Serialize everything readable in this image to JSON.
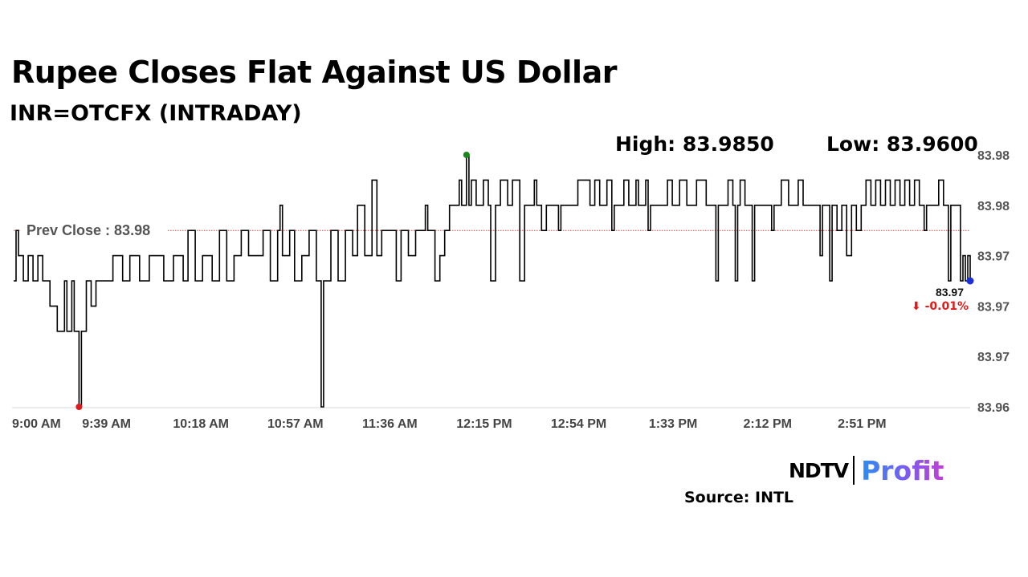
{
  "header": {
    "title": "Rupee Closes Flat Against US Dollar",
    "subtitle": "INR=OTCFX (INTRADAY)"
  },
  "stats": {
    "high": "High: 83.9850",
    "low": "Low: 83.9600"
  },
  "footer": {
    "logo_left": "NDTV",
    "logo_right": "Profit",
    "source": "Source: INTL"
  },
  "colors": {
    "line": "#000000",
    "prev_close": "#d94040",
    "high_marker": "#188a1a",
    "low_marker": "#e01a1a",
    "last_marker": "#1a2fd6",
    "change": "#e01a1a"
  },
  "chart_data": {
    "type": "line",
    "title": "Rupee Closes Flat Against US Dollar",
    "subtitle": "INR=OTCFX (INTRADAY)",
    "x_range_minutes_since_9am": [
      0,
      395
    ],
    "ylim": [
      83.96,
      83.985
    ],
    "y_ticks": [
      83.96,
      83.965,
      83.97,
      83.975,
      83.98,
      83.985
    ],
    "y_tick_labels": [
      "83.96",
      "83.97",
      "83.97",
      "83.97",
      "83.98",
      "83.98"
    ],
    "x_ticks": [
      0,
      39,
      78,
      117,
      156,
      195,
      234,
      273,
      312,
      351
    ],
    "x_tick_labels": [
      "9:00 AM",
      "9:39 AM",
      "10:18 AM",
      "10:57 AM",
      "11:36 AM",
      "12:15 PM",
      "12:54 PM",
      "1:33 PM",
      "2:12 PM",
      "2:51 PM"
    ],
    "prev_close": {
      "value": 83.9775,
      "label": "Prev Close : 83.98"
    },
    "high": {
      "t": 187,
      "value": 83.985
    },
    "low": {
      "t": 27,
      "value": 83.96
    },
    "last": {
      "t": 395,
      "value": 83.9725,
      "label": "83.97",
      "change": "⬇ -0.01%"
    },
    "series": [
      {
        "name": "INR=OTCFX",
        "points": [
          [
            0,
            83.9725
          ],
          [
            1,
            83.9775
          ],
          [
            2,
            83.975
          ],
          [
            4,
            83.9725
          ],
          [
            6,
            83.975
          ],
          [
            8,
            83.9725
          ],
          [
            10,
            83.975
          ],
          [
            12,
            83.9725
          ],
          [
            14,
            83.9725
          ],
          [
            15,
            83.97
          ],
          [
            17,
            83.97
          ],
          [
            18,
            83.9675
          ],
          [
            20,
            83.9675
          ],
          [
            21,
            83.9725
          ],
          [
            22,
            83.9675
          ],
          [
            24,
            83.9725
          ],
          [
            25,
            83.9675
          ],
          [
            26,
            83.9675
          ],
          [
            27,
            83.96
          ],
          [
            28,
            83.9675
          ],
          [
            30,
            83.9725
          ],
          [
            32,
            83.97
          ],
          [
            34,
            83.9725
          ],
          [
            36,
            83.9725
          ],
          [
            38,
            83.9725
          ],
          [
            40,
            83.9725
          ],
          [
            41,
            83.975
          ],
          [
            45,
            83.9725
          ],
          [
            48,
            83.975
          ],
          [
            52,
            83.9725
          ],
          [
            56,
            83.975
          ],
          [
            60,
            83.975
          ],
          [
            62,
            83.9725
          ],
          [
            66,
            83.975
          ],
          [
            70,
            83.9725
          ],
          [
            72,
            83.9775
          ],
          [
            75,
            83.9725
          ],
          [
            78,
            83.975
          ],
          [
            82,
            83.9725
          ],
          [
            85,
            83.9775
          ],
          [
            88,
            83.9725
          ],
          [
            91,
            83.975
          ],
          [
            94,
            83.9775
          ],
          [
            97,
            83.975
          ],
          [
            100,
            83.975
          ],
          [
            103,
            83.9775
          ],
          [
            106,
            83.9725
          ],
          [
            109,
            83.9775
          ],
          [
            110,
            83.98
          ],
          [
            111,
            83.975
          ],
          [
            114,
            83.9775
          ],
          [
            116,
            83.9725
          ],
          [
            119,
            83.975
          ],
          [
            122,
            83.9775
          ],
          [
            125,
            83.9725
          ],
          [
            127,
            83.96
          ],
          [
            128,
            83.9725
          ],
          [
            131,
            83.9775
          ],
          [
            134,
            83.9725
          ],
          [
            137,
            83.9775
          ],
          [
            140,
            83.975
          ],
          [
            142,
            83.98
          ],
          [
            145,
            83.975
          ],
          [
            148,
            83.9825
          ],
          [
            150,
            83.975
          ],
          [
            152,
            83.9775
          ],
          [
            154,
            83.9775
          ],
          [
            156,
            83.9775
          ],
          [
            158,
            83.9725
          ],
          [
            160,
            83.9775
          ],
          [
            163,
            83.975
          ],
          [
            166,
            83.9775
          ],
          [
            170,
            83.98
          ],
          [
            171,
            83.9775
          ],
          [
            174,
            83.9725
          ],
          [
            176,
            83.975
          ],
          [
            178,
            83.9775
          ],
          [
            180,
            83.98
          ],
          [
            182,
            83.98
          ],
          [
            184,
            83.9825
          ],
          [
            185,
            83.98
          ],
          [
            187,
            83.985
          ],
          [
            188,
            83.98
          ],
          [
            189,
            83.9825
          ],
          [
            191,
            83.98
          ],
          [
            194,
            83.9825
          ],
          [
            196,
            83.98
          ],
          [
            197,
            83.9725
          ],
          [
            199,
            83.98
          ],
          [
            201,
            83.9825
          ],
          [
            204,
            83.98
          ],
          [
            206,
            83.9825
          ],
          [
            209,
            83.9725
          ],
          [
            211,
            83.98
          ],
          [
            213,
            83.98
          ],
          [
            215,
            83.9825
          ],
          [
            216,
            83.98
          ],
          [
            218,
            83.9775
          ],
          [
            220,
            83.98
          ],
          [
            224,
            83.98
          ],
          [
            225,
            83.9775
          ],
          [
            226,
            83.98
          ],
          [
            230,
            83.98
          ],
          [
            233,
            83.9825
          ],
          [
            236,
            83.9825
          ],
          [
            238,
            83.98
          ],
          [
            240,
            83.9825
          ],
          [
            242,
            83.98
          ],
          [
            245,
            83.9825
          ],
          [
            247,
            83.9775
          ],
          [
            248,
            83.98
          ],
          [
            252,
            83.9825
          ],
          [
            254,
            83.98
          ],
          [
            257,
            83.9825
          ],
          [
            258,
            83.98
          ],
          [
            261,
            83.9825
          ],
          [
            262,
            83.9775
          ],
          [
            263,
            83.98
          ],
          [
            266,
            83.98
          ],
          [
            270,
            83.9825
          ],
          [
            272,
            83.98
          ],
          [
            275,
            83.9825
          ],
          [
            278,
            83.98
          ],
          [
            282,
            83.9825
          ],
          [
            286,
            83.98
          ],
          [
            290,
            83.9725
          ],
          [
            291,
            83.98
          ],
          [
            294,
            83.98
          ],
          [
            295,
            83.9825
          ],
          [
            297,
            83.98
          ],
          [
            298,
            83.9725
          ],
          [
            299,
            83.98
          ],
          [
            300,
            83.9825
          ],
          [
            302,
            83.98
          ],
          [
            305,
            83.9725
          ],
          [
            306,
            83.98
          ],
          [
            310,
            83.98
          ],
          [
            313,
            83.9775
          ],
          [
            314,
            83.98
          ],
          [
            317,
            83.9825
          ],
          [
            320,
            83.98
          ],
          [
            324,
            83.9825
          ],
          [
            326,
            83.98
          ],
          [
            330,
            83.98
          ],
          [
            333,
            83.975
          ],
          [
            334,
            83.98
          ],
          [
            337,
            83.9725
          ],
          [
            338,
            83.98
          ],
          [
            340,
            83.9775
          ],
          [
            342,
            83.98
          ],
          [
            344,
            83.975
          ],
          [
            346,
            83.98
          ],
          [
            348,
            83.9775
          ],
          [
            350,
            83.98
          ],
          [
            352,
            83.9825
          ],
          [
            354,
            83.98
          ],
          [
            356,
            83.9825
          ],
          [
            358,
            83.98
          ],
          [
            360,
            83.9825
          ],
          [
            362,
            83.98
          ],
          [
            364,
            83.9825
          ],
          [
            366,
            83.98
          ],
          [
            368,
            83.9825
          ],
          [
            370,
            83.98
          ],
          [
            372,
            83.9825
          ],
          [
            374,
            83.98
          ],
          [
            376,
            83.9775
          ],
          [
            377,
            83.98
          ],
          [
            380,
            83.98
          ],
          [
            382,
            83.9825
          ],
          [
            384,
            83.98
          ],
          [
            386,
            83.9725
          ],
          [
            387,
            83.98
          ],
          [
            390,
            83.98
          ],
          [
            391,
            83.9725
          ],
          [
            392,
            83.975
          ],
          [
            393,
            83.9725
          ],
          [
            394,
            83.975
          ],
          [
            395,
            83.9725
          ]
        ]
      }
    ]
  }
}
